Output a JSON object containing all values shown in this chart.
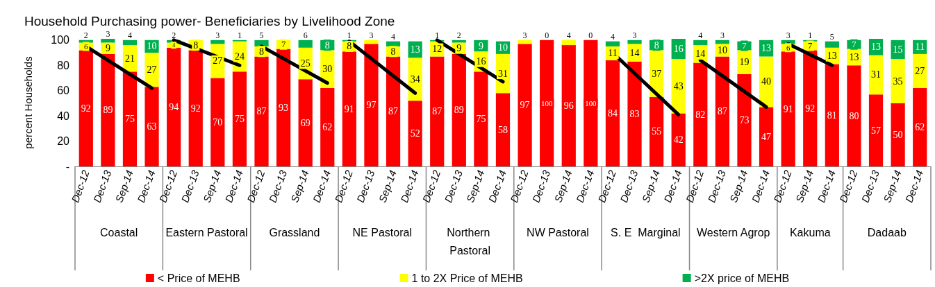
{
  "chart_data": {
    "type": "bar",
    "title": "Household Purchasing power- Beneficiaries by Livelihood Zone",
    "ylabel": "percent Households",
    "categories": [
      "Dec-12",
      "Dec-13",
      "Sep-14",
      "Dec-14",
      "Dec-12",
      "Dec-13",
      "Sep-14",
      "Dec-14",
      "Dec-12",
      "Dec-13",
      "Sep-14",
      "Dec-14",
      "Dec-12",
      "Dec-13",
      "Sep-14",
      "Dec-14",
      "Dec-12",
      "Dec-13",
      "Sep-14",
      "Dec-14",
      "Dec-12",
      "Dec-13",
      "Sep-14",
      "Dec-14",
      "Dec-12",
      "Dec-13",
      "Sep-14",
      "Dec-14",
      "Dec-12",
      "Dec-13",
      "Sep-14",
      "Dec-14",
      "Dec-12",
      "Sep-14",
      "Dec-14",
      "Dec-12",
      "Dec-13",
      "Sep-14",
      "Dec-14"
    ],
    "annotations": [
      "Coastal",
      "Eastern Pastoral",
      "Grassland",
      "NE Pastoral",
      "Northern Pastoral",
      "NW Pastoral",
      "S. E  Marginal",
      "Western Agrop",
      "Kakuma",
      "Dadaab"
    ],
    "stacked": true,
    "legend": "bottom",
    "grid": false,
    "ylim": [
      0,
      101
    ],
    "yticks": [
      {
        "value": 0,
        "label": "-"
      },
      20,
      40,
      60,
      80,
      100
    ],
    "series": [
      {
        "name": "< Price of MEHB",
        "color": "#ff0000",
        "values": [
          92,
          89,
          75,
          63,
          94,
          92,
          70,
          75,
          87,
          93,
          69,
          62,
          91,
          97,
          87,
          52,
          87,
          89,
          75,
          58,
          97,
          100,
          96,
          100,
          84,
          83,
          55,
          42,
          82,
          87,
          73,
          47,
          91,
          92,
          81,
          80,
          57,
          50,
          62
        ],
        "value_labels": [
          "92",
          "89",
          "75",
          "63",
          "94",
          "92",
          "70",
          "75",
          "87",
          "93",
          "69",
          "62",
          "91",
          "97",
          "87",
          "52",
          "87",
          "89",
          "75",
          "58",
          "97",
          "100",
          "96",
          "100",
          "84",
          "83",
          "55",
          "42",
          "82",
          "87",
          "73",
          "47",
          "91",
          "92",
          "81",
          "80",
          "57",
          "50",
          "62"
        ]
      },
      {
        "name": "1 to 2X Price of MEHB",
        "color": "#ffff00",
        "values": [
          6,
          9,
          21,
          27,
          4,
          8,
          27,
          24,
          8,
          7,
          25,
          30,
          8,
          3,
          8,
          34,
          12,
          9,
          16,
          31,
          3,
          0,
          4,
          0,
          11,
          14,
          37,
          43,
          14,
          10,
          19,
          40,
          6,
          7,
          13,
          13,
          31,
          35,
          27
        ],
        "value_labels": [
          "6",
          "9",
          "21",
          "27",
          "4",
          "8",
          "27",
          "24",
          "8",
          "7",
          "25",
          "30",
          "8",
          "3",
          "8",
          "34",
          "12",
          "9",
          "16",
          "31",
          "3",
          "0",
          "4",
          "0",
          "11",
          "14",
          "37",
          "43",
          "14",
          "10",
          "19",
          "40",
          "6",
          "7",
          "13",
          "13",
          "31",
          "35",
          "27"
        ]
      },
      {
        "name": ">2X price of MEHB",
        "color": "#00b050",
        "values": [
          2,
          3,
          4,
          10,
          2,
          null,
          3,
          1,
          5,
          null,
          6,
          8,
          1,
          null,
          4,
          13,
          1,
          2,
          9,
          10,
          null,
          null,
          null,
          null,
          4,
          3,
          8,
          16,
          4,
          3,
          7,
          13,
          3,
          1,
          5,
          7,
          13,
          15,
          11
        ],
        "value_labels": [
          "2",
          "3",
          "4",
          "10",
          "2",
          null,
          "3",
          "1",
          "5",
          null,
          "6",
          "8",
          "1",
          null,
          "4",
          "13",
          "1",
          "2",
          "9",
          "10",
          null,
          null,
          null,
          null,
          "4",
          "3",
          "8",
          "16",
          "4",
          "3",
          "7",
          "13",
          "3",
          "1",
          "5",
          "7",
          "13",
          "15",
          "11"
        ]
      },
      {
        "type": "line",
        "color": "#000000",
        "values": [
          95,
          null,
          null,
          62,
          null,
          null,
          null,
          null,
          null,
          null,
          null,
          null,
          null,
          null,
          null,
          null,
          null,
          null,
          null,
          null,
          null,
          null,
          null,
          null,
          null,
          null,
          null,
          null,
          null,
          null,
          null,
          null,
          null,
          null,
          null,
          null,
          null,
          null,
          null
        ]
      },
      {
        "type": "line",
        "color": "#000000",
        "values": [
          null,
          null,
          null,
          null,
          100,
          null,
          null,
          80,
          null,
          null,
          null,
          null,
          null,
          null,
          null,
          null,
          null,
          null,
          null,
          null,
          null,
          null,
          null,
          null,
          null,
          null,
          null,
          null,
          null,
          null,
          null,
          null,
          null,
          null,
          null,
          null,
          null,
          null,
          null
        ]
      },
      {
        "type": "line",
        "color": "#000000",
        "values": [
          null,
          null,
          null,
          null,
          null,
          null,
          null,
          null,
          95,
          null,
          null,
          66,
          null,
          null,
          null,
          null,
          null,
          null,
          null,
          null,
          null,
          null,
          null,
          null,
          null,
          null,
          null,
          null,
          null,
          null,
          null,
          null,
          null,
          null,
          null,
          null,
          null,
          null,
          null
        ]
      },
      {
        "type": "line",
        "color": "#000000",
        "values": [
          null,
          null,
          null,
          null,
          null,
          null,
          null,
          null,
          null,
          null,
          null,
          null,
          99,
          null,
          null,
          58,
          null,
          null,
          null,
          null,
          null,
          null,
          null,
          null,
          null,
          null,
          null,
          null,
          null,
          null,
          null,
          null,
          null,
          null,
          null,
          null,
          null,
          null,
          null
        ]
      },
      {
        "type": "line",
        "color": "#000000",
        "values": [
          null,
          null,
          null,
          null,
          null,
          null,
          null,
          null,
          null,
          null,
          null,
          null,
          null,
          null,
          null,
          null,
          100,
          null,
          null,
          67,
          null,
          null,
          null,
          null,
          null,
          null,
          null,
          null,
          null,
          null,
          null,
          null,
          null,
          null,
          null,
          null,
          null,
          null,
          null
        ]
      },
      {
        "type": "line",
        "color": "#000000",
        "values": [
          null,
          null,
          null,
          null,
          null,
          null,
          null,
          null,
          null,
          null,
          null,
          null,
          null,
          null,
          null,
          null,
          null,
          null,
          null,
          null,
          null,
          null,
          null,
          null,
          90,
          null,
          null,
          41,
          null,
          null,
          null,
          null,
          null,
          null,
          null,
          null,
          null,
          null,
          null
        ]
      },
      {
        "type": "line",
        "color": "#000000",
        "values": [
          null,
          null,
          null,
          null,
          null,
          null,
          null,
          null,
          null,
          null,
          null,
          null,
          null,
          null,
          null,
          null,
          null,
          null,
          null,
          null,
          null,
          null,
          null,
          null,
          null,
          null,
          null,
          null,
          84,
          null,
          null,
          47,
          null,
          null,
          null,
          null,
          null,
          null,
          null
        ]
      },
      {
        "type": "line",
        "color": "#000000",
        "values": [
          null,
          null,
          null,
          null,
          null,
          null,
          null,
          null,
          null,
          null,
          null,
          null,
          null,
          null,
          null,
          null,
          null,
          null,
          null,
          null,
          null,
          null,
          null,
          null,
          null,
          null,
          null,
          null,
          null,
          null,
          null,
          null,
          97,
          null,
          80,
          null,
          null,
          null,
          null
        ]
      }
    ]
  }
}
